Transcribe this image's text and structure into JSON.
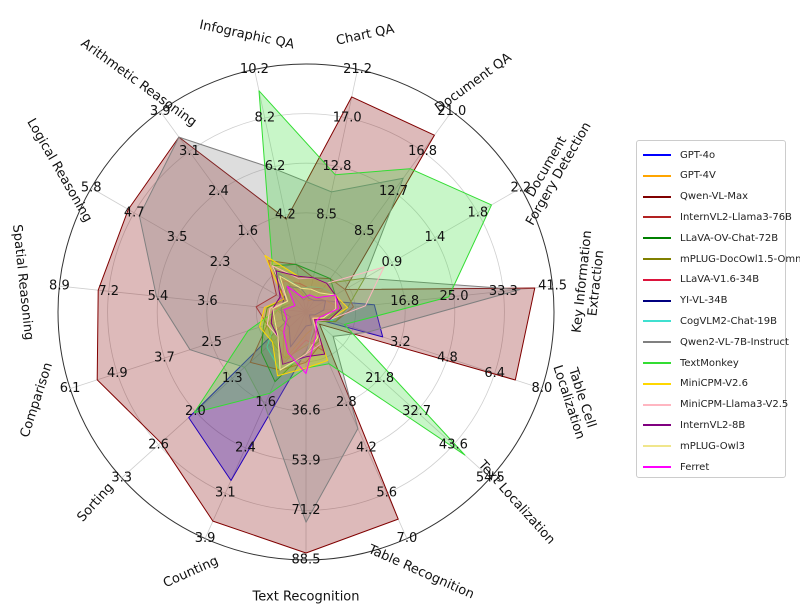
{
  "chart_data": {
    "type": "radar",
    "axes": [
      {
        "name": "Text Recognition",
        "label_lines": [
          "Text Recognition"
        ],
        "max": 88.5,
        "ticks": [
          "36.6",
          "53.9",
          "71.2",
          "88.5"
        ]
      },
      {
        "name": "Counting",
        "label_lines": [
          "Counting"
        ],
        "max": 3.9,
        "ticks": [
          "1.6",
          "2.4",
          "3.1",
          "3.9"
        ]
      },
      {
        "name": "Sorting",
        "label_lines": [
          "Sorting"
        ],
        "max": 3.3,
        "ticks": [
          "1.3",
          "2.0",
          "2.6",
          "3.3"
        ]
      },
      {
        "name": "Comparison",
        "label_lines": [
          "Comparison"
        ],
        "max": 6.1,
        "ticks": [
          "2.5",
          "3.7",
          "4.9",
          "6.1"
        ]
      },
      {
        "name": "Spatial Reasoning",
        "label_lines": [
          "Spatial Reasoning"
        ],
        "max": 8.9,
        "ticks": [
          "3.6",
          "5.4",
          "7.2",
          "8.9"
        ]
      },
      {
        "name": "Logical Reasoning",
        "label_lines": [
          "Logical Reasoning"
        ],
        "max": 5.8,
        "ticks": [
          "2.3",
          "3.5",
          "4.7",
          "5.8"
        ]
      },
      {
        "name": "Arithmetic Reasoning",
        "label_lines": [
          "Arithmetic Reasoning"
        ],
        "max": 3.9,
        "ticks": [
          "1.6",
          "2.4",
          "3.1",
          "3.9"
        ]
      },
      {
        "name": "Infographic QA",
        "label_lines": [
          "Infographic QA"
        ],
        "max": 10.2,
        "ticks": [
          "4.2",
          "6.2",
          "8.2",
          "10.2"
        ]
      },
      {
        "name": "Chart QA",
        "label_lines": [
          "Chart QA"
        ],
        "max": 21.2,
        "ticks": [
          "8.5",
          "12.8",
          "17.0",
          "21.2"
        ]
      },
      {
        "name": "Document QA",
        "label_lines": [
          "Document QA"
        ],
        "max": 21.0,
        "ticks": [
          "8.5",
          "12.7",
          "16.8",
          "21.0"
        ]
      },
      {
        "name": "Document Forgery Detection",
        "label_lines": [
          "Document",
          "Forgery Detection"
        ],
        "max": 2.2,
        "ticks": [
          "0.9",
          "1.4",
          "1.8",
          "2.2"
        ]
      },
      {
        "name": "Key Information Extraction",
        "label_lines": [
          "Key Information",
          "Extraction"
        ],
        "max": 41.5,
        "ticks": [
          "16.8",
          "25.0",
          "33.3",
          "41.5"
        ]
      },
      {
        "name": "Table Cell Localization",
        "label_lines": [
          "Table Cell",
          "Localization"
        ],
        "max": 8.0,
        "ticks": [
          "3.2",
          "4.8",
          "6.4",
          "8.0"
        ]
      },
      {
        "name": "Text Localization",
        "label_lines": [
          "Text Localization"
        ],
        "max": 54.5,
        "ticks": [
          "21.8",
          "32.7",
          "43.6",
          "54.5"
        ]
      },
      {
        "name": "Table Recognition",
        "label_lines": [
          "Table Recognition"
        ],
        "max": 7.0,
        "ticks": [
          "2.8",
          "4.2",
          "5.6",
          "7.0"
        ]
      }
    ],
    "series": [
      {
        "name": "GPT-4o",
        "color": "#0000ff",
        "fill": true,
        "values": [
          14.0,
          2.9,
          2.1,
          0.4,
          1.0,
          0.4,
          0.9,
          0.5,
          1.5,
          1.5,
          0.2,
          11.5,
          2.6,
          2.0,
          0.6
        ]
      },
      {
        "name": "GPT-4V",
        "color": "#ffa500",
        "fill": false,
        "values": [
          8.0,
          0.8,
          0.3,
          0.5,
          1.1,
          0.4,
          0.7,
          0.8,
          1.0,
          1.3,
          0.2,
          6.0,
          0.4,
          1.0,
          0.5
        ]
      },
      {
        "name": "Qwen-VL-Max",
        "color": "#800000",
        "fill": true,
        "values": [
          86.0,
          3.6,
          2.6,
          5.4,
          7.5,
          4.8,
          3.4,
          3.9,
          18.8,
          18.5,
          0.4,
          38.5,
          7.1,
          4.0,
          6.4
        ]
      },
      {
        "name": "InternVL2-Llama3-76B",
        "color": "#b22222",
        "fill": false,
        "values": [
          18.0,
          1.0,
          1.0,
          1.0,
          1.8,
          0.8,
          1.0,
          2.0,
          3.0,
          3.5,
          0.4,
          8.0,
          1.0,
          3.0,
          1.0
        ]
      },
      {
        "name": "LLaVA-OV-Chat-72B",
        "color": "#008000",
        "fill": false,
        "values": [
          14.0,
          1.2,
          0.8,
          1.1,
          1.4,
          0.6,
          0.9,
          2.0,
          3.5,
          3.5,
          0.3,
          6.0,
          0.7,
          2.5,
          0.9
        ]
      },
      {
        "name": "mPLUG-DocOwl1.5-Omni",
        "color": "#808000",
        "fill": false,
        "values": [
          12.0,
          0.8,
          0.6,
          1.0,
          1.0,
          0.5,
          0.8,
          1.5,
          3.0,
          3.0,
          0.6,
          7.0,
          1.0,
          3.0,
          0.8
        ]
      },
      {
        "name": "LLaVA-V1.6-34B",
        "color": "#dc143c",
        "fill": false,
        "values": [
          10.0,
          0.9,
          0.4,
          0.9,
          1.2,
          0.7,
          0.6,
          1.2,
          2.0,
          2.5,
          0.3,
          5.0,
          0.5,
          2.0,
          1.2
        ]
      },
      {
        "name": "YI-VL-34B",
        "color": "#000080",
        "fill": false,
        "values": [
          5.0,
          0.6,
          0.3,
          0.6,
          0.9,
          0.6,
          0.5,
          1.0,
          1.2,
          1.2,
          0.2,
          3.0,
          0.3,
          1.0,
          0.4
        ]
      },
      {
        "name": "CogVLM2-Chat-19B",
        "color": "#40e0d0",
        "fill": false,
        "values": [
          16.0,
          1.0,
          0.7,
          0.8,
          1.2,
          0.5,
          0.8,
          1.0,
          2.2,
          2.5,
          0.3,
          6.0,
          0.9,
          2.0,
          0.5
        ]
      },
      {
        "name": "Qwen2-VL-7B-Instruct",
        "color": "#808080",
        "fill": true,
        "values": [
          75.0,
          1.6,
          1.1,
          3.0,
          5.4,
          4.5,
          3.4,
          6.0,
          10.5,
          14.0,
          0.6,
          36.0,
          2.1,
          8.0,
          3.6
        ]
      },
      {
        "name": "TextMonkey",
        "color": "#33dd33",
        "fill": true,
        "values": [
          20.0,
          1.4,
          2.0,
          1.5,
          1.0,
          0.5,
          0.9,
          9.3,
          12.0,
          15.0,
          1.9,
          24.0,
          1.3,
          47.0,
          1.6
        ]
      },
      {
        "name": "MiniCPM-V2.6",
        "color": "#ffd700",
        "fill": true,
        "values": [
          20.0,
          1.1,
          0.6,
          1.2,
          1.5,
          0.6,
          1.1,
          1.5,
          3.0,
          3.0,
          0.3,
          7.0,
          0.8,
          2.2,
          1.5
        ]
      },
      {
        "name": "MiniCPM-Llama3-V2.5",
        "color": "#ffb6c1",
        "fill": false,
        "values": [
          15.0,
          1.0,
          0.5,
          1.0,
          1.3,
          0.5,
          0.9,
          1.4,
          3.0,
          3.0,
          0.8,
          10.0,
          0.8,
          3.0,
          1.0
        ]
      },
      {
        "name": "InternVL2-8B",
        "color": "#800080",
        "fill": false,
        "values": [
          16.0,
          0.9,
          0.5,
          0.9,
          1.2,
          0.7,
          0.8,
          1.5,
          3.0,
          3.0,
          0.3,
          6.0,
          0.8,
          2.5,
          1.3
        ]
      },
      {
        "name": "mPLUG-Owl3",
        "color": "#f0e68c",
        "fill": false,
        "values": [
          15.0,
          1.0,
          0.5,
          0.8,
          1.2,
          0.5,
          0.7,
          1.0,
          2.0,
          2.0,
          0.3,
          5.0,
          0.6,
          2.0,
          0.8
        ]
      },
      {
        "name": "Ferret",
        "color": "#ff00ff",
        "fill": false,
        "values": [
          22.0,
          0.7,
          0.4,
          0.5,
          0.8,
          0.3,
          0.5,
          0.6,
          1.5,
          1.5,
          0.3,
          5.5,
          0.5,
          3.0,
          0.7
        ]
      }
    ]
  }
}
